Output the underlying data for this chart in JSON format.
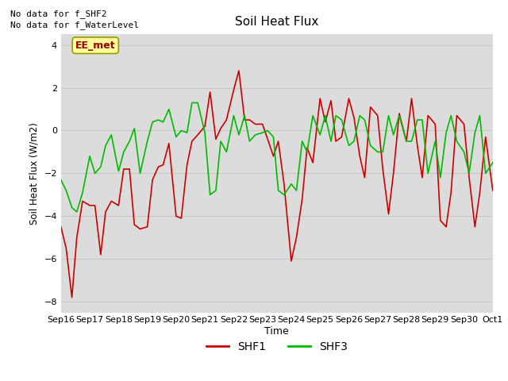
{
  "title": "Soil Heat Flux",
  "ylabel": "Soil Heat Flux (W/m2)",
  "xlabel": "Time",
  "ylim": [
    -8.5,
    4.5
  ],
  "yticks": [
    -8,
    -6,
    -4,
    -2,
    0,
    2,
    4
  ],
  "bg_color": "#dcdcdc",
  "fig_color": "#ffffff",
  "no_data_text": [
    "No data for f_SHF2",
    "No data for f_WaterLevel"
  ],
  "ee_met_label": "EE_met",
  "xtick_labels": [
    "Sep 16",
    "Sep 17",
    "Sep 18",
    "Sep 19",
    "Sep 20",
    "Sep 21",
    "Sep 22",
    "Sep 23",
    "Sep 24",
    "Sep 25",
    "Sep 26",
    "Sep 27",
    "Sep 28",
    "Sep 29",
    "Sep 30",
    "Oct 1"
  ],
  "shf1_color": "#cc0000",
  "shf3_color": "#00bb00",
  "shf1_x": [
    0,
    0.18,
    0.38,
    0.55,
    0.75,
    1.0,
    1.18,
    1.38,
    1.55,
    1.75,
    2.0,
    2.18,
    2.38,
    2.55,
    2.75,
    3.0,
    3.18,
    3.38,
    3.55,
    3.75,
    4.0,
    4.18,
    4.38,
    4.55,
    4.75,
    5.0,
    5.18,
    5.38,
    5.55,
    5.75,
    6.0,
    6.18,
    6.38,
    6.55,
    6.75,
    7.0,
    7.18,
    7.38,
    7.55,
    7.75,
    8.0,
    8.18,
    8.38,
    8.55,
    8.75,
    9.0,
    9.18,
    9.38,
    9.55,
    9.75,
    10.0,
    10.18,
    10.38,
    10.55,
    10.75,
    11.0,
    11.18,
    11.38,
    11.55,
    11.75,
    12.0,
    12.18,
    12.38,
    12.55,
    12.75,
    13.0,
    13.18,
    13.38,
    13.55,
    13.75,
    14.0,
    14.18,
    14.38,
    14.55,
    14.75,
    15.0
  ],
  "shf1_y": [
    -4.5,
    -5.5,
    -7.8,
    -5.0,
    -3.3,
    -3.5,
    -3.5,
    -5.8,
    -3.8,
    -3.3,
    -3.5,
    -1.8,
    -1.8,
    -4.4,
    -4.6,
    -4.5,
    -2.3,
    -1.7,
    -1.6,
    -0.6,
    -4.0,
    -4.1,
    -1.6,
    -0.5,
    -0.2,
    0.2,
    1.8,
    -0.4,
    0.1,
    0.5,
    1.9,
    2.8,
    0.5,
    0.5,
    0.3,
    0.3,
    -0.4,
    -1.2,
    -0.5,
    -2.5,
    -6.1,
    -5.0,
    -3.2,
    -0.8,
    -1.5,
    1.5,
    0.4,
    1.4,
    -0.5,
    -0.3,
    1.5,
    0.6,
    -1.2,
    -2.2,
    1.1,
    0.7,
    -1.8,
    -3.9,
    -2.0,
    0.8,
    -0.5,
    1.5,
    -0.7,
    -2.2,
    0.7,
    0.3,
    -4.2,
    -4.5,
    -2.9,
    0.7,
    0.3,
    -2.2,
    -4.5,
    -2.9,
    -0.3,
    -2.8
  ],
  "shf3_x": [
    0,
    0.18,
    0.38,
    0.55,
    0.75,
    1.0,
    1.18,
    1.38,
    1.55,
    1.75,
    2.0,
    2.18,
    2.38,
    2.55,
    2.75,
    3.0,
    3.18,
    3.38,
    3.55,
    3.75,
    4.0,
    4.18,
    4.38,
    4.55,
    4.75,
    5.0,
    5.18,
    5.38,
    5.55,
    5.75,
    6.0,
    6.18,
    6.38,
    6.55,
    6.75,
    7.0,
    7.18,
    7.38,
    7.55,
    7.75,
    8.0,
    8.18,
    8.38,
    8.55,
    8.75,
    9.0,
    9.18,
    9.38,
    9.55,
    9.75,
    10.0,
    10.18,
    10.38,
    10.55,
    10.75,
    11.0,
    11.18,
    11.38,
    11.55,
    11.75,
    12.0,
    12.18,
    12.38,
    12.55,
    12.75,
    13.0,
    13.18,
    13.38,
    13.55,
    13.75,
    14.0,
    14.18,
    14.38,
    14.55,
    14.75,
    15.0
  ],
  "shf3_y": [
    -2.3,
    -2.8,
    -3.6,
    -3.8,
    -2.9,
    -1.2,
    -2.0,
    -1.7,
    -0.7,
    -0.2,
    -1.9,
    -1.0,
    -0.5,
    0.1,
    -2.0,
    -0.5,
    0.4,
    0.5,
    0.4,
    1.0,
    -0.3,
    0.0,
    -0.1,
    1.3,
    1.3,
    -0.1,
    -3.0,
    -2.8,
    -0.5,
    -1.0,
    0.7,
    -0.2,
    0.7,
    -0.5,
    -0.2,
    -0.1,
    0.0,
    -0.3,
    -2.8,
    -3.0,
    -2.5,
    -2.8,
    -0.5,
    -1.0,
    0.7,
    -0.2,
    0.7,
    -0.5,
    0.7,
    0.5,
    -0.7,
    -0.5,
    0.7,
    0.5,
    -0.7,
    -1.0,
    -1.0,
    0.7,
    -0.2,
    0.7,
    -0.5,
    -0.5,
    0.5,
    0.5,
    -2.0,
    -0.5,
    -2.2,
    -0.1,
    0.7,
    -0.5,
    -1.0,
    -2.0,
    -0.1,
    0.7,
    -2.0,
    -1.5
  ]
}
